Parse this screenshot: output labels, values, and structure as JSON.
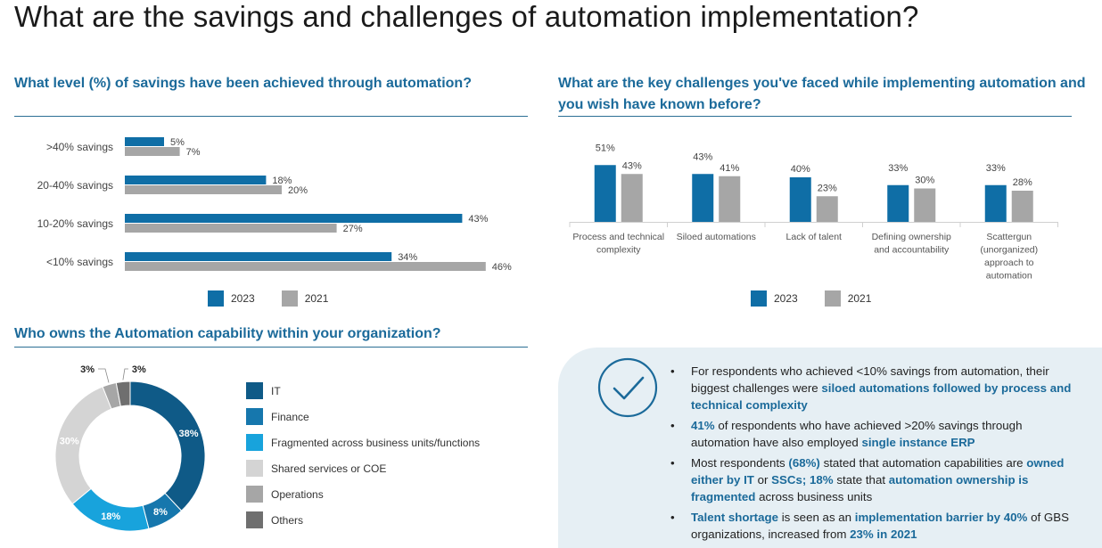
{
  "page_title": "What are the savings and challenges of automation implementation?",
  "colors": {
    "series_2023": "#0f6ea6",
    "series_2021": "#a6a6a6",
    "accent": "#1b6a9a"
  },
  "chart_data": [
    {
      "type": "bar",
      "orientation": "horizontal",
      "title": "What level (%) of savings have been achieved through automation?",
      "categories": [
        ">40% savings",
        "20-40% savings",
        "10-20% savings",
        "<10% savings"
      ],
      "series": [
        {
          "name": "2023",
          "values": [
            5,
            18,
            43,
            34
          ],
          "labels": [
            "5%",
            "18%",
            "43%",
            "34%"
          ]
        },
        {
          "name": "2021",
          "values": [
            7,
            20,
            27,
            46
          ],
          "labels": [
            "7%",
            "20%",
            "27%",
            "46%"
          ]
        }
      ],
      "xlim": [
        0,
        50
      ],
      "legend": [
        "2023",
        "2021"
      ]
    },
    {
      "type": "bar",
      "orientation": "vertical",
      "title": "What are the key challenges you've faced while implementing automation and you wish have known before?",
      "categories": [
        [
          "Process and technical",
          "complexity"
        ],
        [
          "Siloed automations"
        ],
        [
          "Lack of talent"
        ],
        [
          "Defining ownership",
          "and accountability"
        ],
        [
          "Scattergun",
          "(unorganized)",
          "approach to",
          "automation"
        ]
      ],
      "series": [
        {
          "name": "2023",
          "values": [
            51,
            43,
            40,
            33,
            33
          ],
          "labels": [
            "51%",
            "43%",
            "40%",
            "33%",
            "33%"
          ]
        },
        {
          "name": "2021",
          "values": [
            43,
            41,
            23,
            30,
            28
          ],
          "labels": [
            "43%",
            "41%",
            "23%",
            "30%",
            "28%"
          ]
        }
      ],
      "ylim": [
        0,
        60
      ],
      "legend": [
        "2023",
        "2021"
      ]
    },
    {
      "type": "pie",
      "donut": true,
      "title": "Who owns the Automation capability within your organization?",
      "slices": [
        {
          "name": "IT",
          "value": 38,
          "label": "38%",
          "color": "#0f5a87"
        },
        {
          "name": "Finance",
          "value": 8,
          "label": "8%",
          "color": "#1677ad"
        },
        {
          "name": "Fragmented across business units/functions",
          "value": 18,
          "label": "18%",
          "color": "#18a3dc"
        },
        {
          "name": "Shared services or COE",
          "value": 30,
          "label": "30%",
          "color": "#d4d4d4"
        },
        {
          "name": "Operations",
          "value": 3,
          "label": "3%",
          "color": "#a6a6a6"
        },
        {
          "name": "Others",
          "value": 3,
          "label": "3%",
          "color": "#6f6f6f"
        }
      ]
    }
  ],
  "insights": [
    [
      {
        "t": "For respondents who achieved <10% savings from automation, their biggest challenges were "
      },
      {
        "t": "siloed automations followed by process and technical complexity",
        "h": true
      }
    ],
    [
      {
        "t": "41%",
        "h": true
      },
      {
        "t": " of respondents who have achieved >20% savings through automation have also employed "
      },
      {
        "t": "single instance ERP",
        "h": true
      }
    ],
    [
      {
        "t": "Most respondents "
      },
      {
        "t": "(68%)",
        "h": true
      },
      {
        "t": " stated that automation capabilities are "
      },
      {
        "t": "owned either by IT",
        "h": true
      },
      {
        "t": " or "
      },
      {
        "t": "SSCs; 18%",
        "h": true
      },
      {
        "t": " state that "
      },
      {
        "t": "automation ownership is fragmented",
        "h": true
      },
      {
        "t": " across business units"
      }
    ],
    [
      {
        "t": "Talent shortage",
        "h": true
      },
      {
        "t": " is seen as an "
      },
      {
        "t": "implementation barrier by 40%",
        "h": true
      },
      {
        "t": " of GBS organizations, increased from "
      },
      {
        "t": "23% in 2021",
        "h": true
      }
    ]
  ],
  "bullet_char": "•"
}
